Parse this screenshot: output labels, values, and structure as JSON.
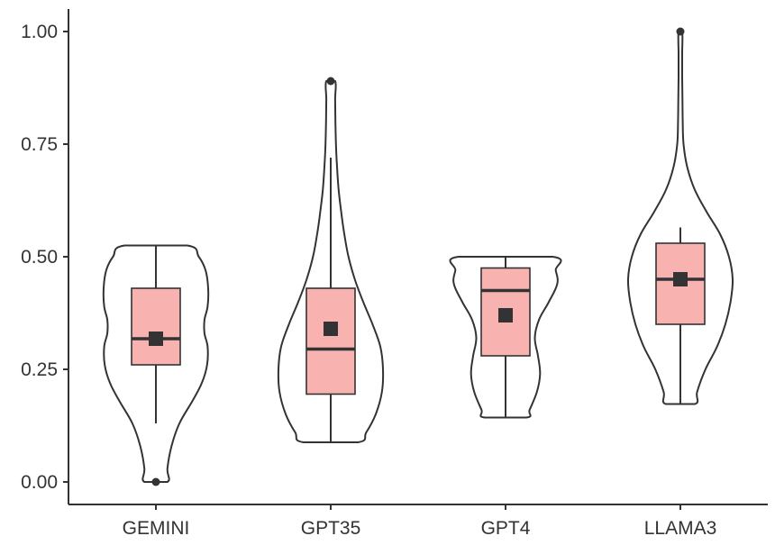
{
  "chart_data": {
    "type": "violin",
    "title": "",
    "xlabel": "",
    "ylabel": "",
    "ylim": [
      -0.05,
      1.05
    ],
    "y_ticks": [
      0.0,
      0.25,
      0.5,
      0.75,
      1.0
    ],
    "y_tick_labels": [
      "0.00",
      "0.25",
      "0.50",
      "0.75",
      "1.00"
    ],
    "grid": false,
    "legend": "none",
    "colors": {
      "box_fill": "#f8b3b0",
      "outline": "#333333",
      "background": "#ffffff"
    },
    "categories": [
      "GEMINI",
      "GPT35",
      "GPT4",
      "LLAMA3"
    ],
    "groups": [
      {
        "name": "GEMINI",
        "box": {
          "q1": 0.26,
          "median": 0.318,
          "q3": 0.43,
          "whisker_low": 0.13,
          "whisker_high": 0.525
        },
        "mean": 0.318,
        "outliers": [
          0.0
        ],
        "density": [
          [
            0.0,
            0.22
          ],
          [
            0.03,
            0.22
          ],
          [
            0.08,
            0.3
          ],
          [
            0.13,
            0.45
          ],
          [
            0.18,
            0.7
          ],
          [
            0.22,
            0.88
          ],
          [
            0.26,
            0.98
          ],
          [
            0.3,
            0.99
          ],
          [
            0.33,
            0.93
          ],
          [
            0.36,
            0.93
          ],
          [
            0.39,
            0.99
          ],
          [
            0.43,
            1.0
          ],
          [
            0.47,
            0.95
          ],
          [
            0.5,
            0.82
          ],
          [
            0.525,
            0.6
          ]
        ]
      },
      {
        "name": "GPT35",
        "box": {
          "q1": 0.195,
          "median": 0.295,
          "q3": 0.43,
          "whisker_low": 0.088,
          "whisker_high": 0.72
        },
        "mean": 0.34,
        "outliers": [
          0.89
        ],
        "density": [
          [
            0.088,
            0.52
          ],
          [
            0.11,
            0.68
          ],
          [
            0.15,
            0.86
          ],
          [
            0.2,
            0.98
          ],
          [
            0.25,
            1.0
          ],
          [
            0.3,
            0.95
          ],
          [
            0.35,
            0.8
          ],
          [
            0.4,
            0.62
          ],
          [
            0.45,
            0.46
          ],
          [
            0.5,
            0.34
          ],
          [
            0.55,
            0.26
          ],
          [
            0.6,
            0.2
          ],
          [
            0.65,
            0.15
          ],
          [
            0.7,
            0.12
          ],
          [
            0.75,
            0.1
          ],
          [
            0.8,
            0.09
          ],
          [
            0.85,
            0.085
          ],
          [
            0.89,
            0.085
          ]
        ]
      },
      {
        "name": "GPT4",
        "box": {
          "q1": 0.28,
          "median": 0.425,
          "q3": 0.475,
          "whisker_low": 0.143,
          "whisker_high": 0.5
        },
        "mean": 0.37,
        "outliers": [],
        "density": [
          [
            0.143,
            0.4
          ],
          [
            0.16,
            0.46
          ],
          [
            0.2,
            0.6
          ],
          [
            0.24,
            0.66
          ],
          [
            0.28,
            0.62
          ],
          [
            0.32,
            0.56
          ],
          [
            0.36,
            0.64
          ],
          [
            0.4,
            0.83
          ],
          [
            0.44,
            0.99
          ],
          [
            0.47,
            0.96
          ],
          [
            0.5,
            0.9
          ]
        ]
      },
      {
        "name": "LLAMA3",
        "box": {
          "q1": 0.35,
          "median": 0.45,
          "q3": 0.53,
          "whisker_low": 0.173,
          "whisker_high": 0.565
        },
        "mean": 0.45,
        "outliers": [
          1.0
        ],
        "density": [
          [
            0.173,
            0.28
          ],
          [
            0.2,
            0.32
          ],
          [
            0.25,
            0.48
          ],
          [
            0.3,
            0.7
          ],
          [
            0.35,
            0.86
          ],
          [
            0.4,
            0.96
          ],
          [
            0.45,
            1.0
          ],
          [
            0.5,
            0.93
          ],
          [
            0.55,
            0.76
          ],
          [
            0.6,
            0.5
          ],
          [
            0.65,
            0.27
          ],
          [
            0.7,
            0.13
          ],
          [
            0.75,
            0.06
          ],
          [
            0.8,
            0.045
          ],
          [
            0.85,
            0.04
          ],
          [
            0.9,
            0.035
          ],
          [
            0.95,
            0.035
          ],
          [
            1.0,
            0.035
          ]
        ]
      }
    ]
  }
}
